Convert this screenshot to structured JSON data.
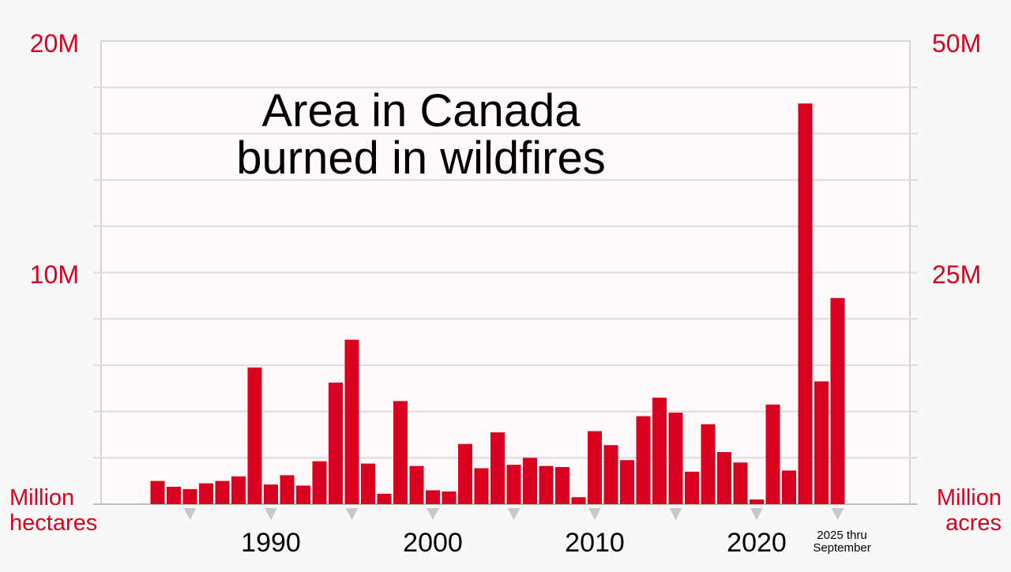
{
  "chart_data": {
    "type": "bar",
    "title_lines": [
      "Area in Canada",
      "burned in wildfires"
    ],
    "x": [
      1983,
      1984,
      1985,
      1986,
      1987,
      1988,
      1989,
      1990,
      1991,
      1992,
      1993,
      1994,
      1995,
      1996,
      1997,
      1998,
      1999,
      2000,
      2001,
      2002,
      2003,
      2004,
      2005,
      2006,
      2007,
      2008,
      2009,
      2010,
      2011,
      2012,
      2013,
      2014,
      2015,
      2016,
      2017,
      2018,
      2019,
      2020,
      2021,
      2022,
      2023,
      2024,
      2025
    ],
    "values": [
      1.0,
      0.75,
      0.65,
      0.9,
      1.0,
      1.2,
      5.9,
      0.85,
      1.25,
      0.8,
      1.85,
      5.25,
      7.1,
      1.75,
      0.45,
      4.45,
      1.65,
      0.6,
      0.55,
      2.6,
      1.55,
      3.1,
      1.7,
      2.0,
      1.65,
      1.6,
      0.3,
      3.15,
      2.55,
      1.9,
      3.8,
      4.6,
      3.95,
      1.4,
      3.45,
      2.25,
      1.8,
      0.2,
      4.3,
      1.45,
      17.3,
      5.3,
      8.9
    ],
    "bar_color": "#d8001e",
    "ylim": [
      0,
      20
    ],
    "left_axis": {
      "ticks": [
        "20M",
        "10M"
      ],
      "unit_lines": [
        "Million",
        "hectares"
      ]
    },
    "right_axis": {
      "ticks": [
        "50M",
        "25M"
      ],
      "unit_lines": [
        "Million",
        "acres"
      ]
    },
    "x_tick_labels": [
      "1990",
      "2000",
      "2010",
      "2020"
    ],
    "x_tick_label_values": [
      1990,
      2000,
      2010,
      2020
    ],
    "x_tick_marker_years": [
      1985,
      1990,
      1995,
      2000,
      2005,
      2010,
      2015,
      2020,
      2025
    ],
    "last_bar_note_lines": [
      "2025 thru",
      "September"
    ],
    "grid": true,
    "colors": {
      "bars": "#d8001e",
      "axis_text": "#d8001e",
      "grid": "#dcdcdc",
      "plot_bg": "#fff9f9",
      "page_bg": "#f8f8f8",
      "marker": "#c8c8c8"
    }
  }
}
